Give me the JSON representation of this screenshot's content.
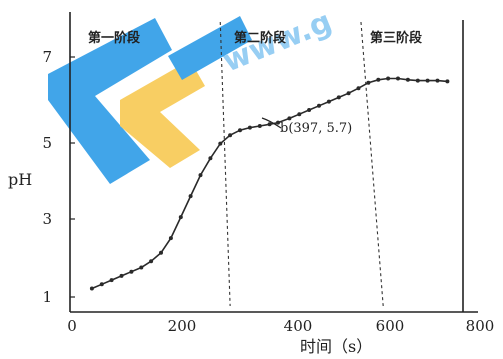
{
  "chart_data": {
    "type": "line",
    "title": "",
    "xlabel": "时间（s）",
    "ylabel": "pH",
    "xlim": [
      0,
      800
    ],
    "ylim": [
      1,
      8
    ],
    "xticks": [
      0,
      200,
      400,
      600,
      800
    ],
    "yticks": [
      1,
      3,
      5,
      7
    ],
    "grid": false,
    "stage_boundaries": [
      {
        "x_top": 280,
        "x_bottom": 300
      },
      {
        "x_top": 565,
        "x_bottom": 610
      }
    ],
    "stages": [
      "第一阶段",
      "第二阶段",
      "第三阶段"
    ],
    "annotation": {
      "text": "b(397, 5.7)",
      "x": 397,
      "y": 5.7
    },
    "series": [
      {
        "x": [
          20,
          40,
          60,
          80,
          100,
          120,
          140,
          160,
          180,
          200,
          220,
          240,
          260,
          280,
          300,
          320,
          340,
          360,
          380,
          397,
          420,
          440,
          460,
          480,
          500,
          520,
          540,
          560,
          580,
          600,
          620,
          640,
          660,
          680,
          700,
          720,
          740
        ],
        "y": [
          1.75,
          1.85,
          1.95,
          2.05,
          2.15,
          2.25,
          2.4,
          2.6,
          2.95,
          3.45,
          3.95,
          4.45,
          4.85,
          5.2,
          5.4,
          5.52,
          5.58,
          5.62,
          5.66,
          5.7,
          5.8,
          5.9,
          6.0,
          6.1,
          6.2,
          6.3,
          6.4,
          6.52,
          6.65,
          6.72,
          6.75,
          6.75,
          6.72,
          6.7,
          6.7,
          6.7,
          6.68
        ],
        "color": "#2a2a2a"
      }
    ]
  },
  "watermark": {
    "text": "www.g",
    "colors": {
      "blue": "#2196e6",
      "yellow": "#f7c648"
    }
  }
}
